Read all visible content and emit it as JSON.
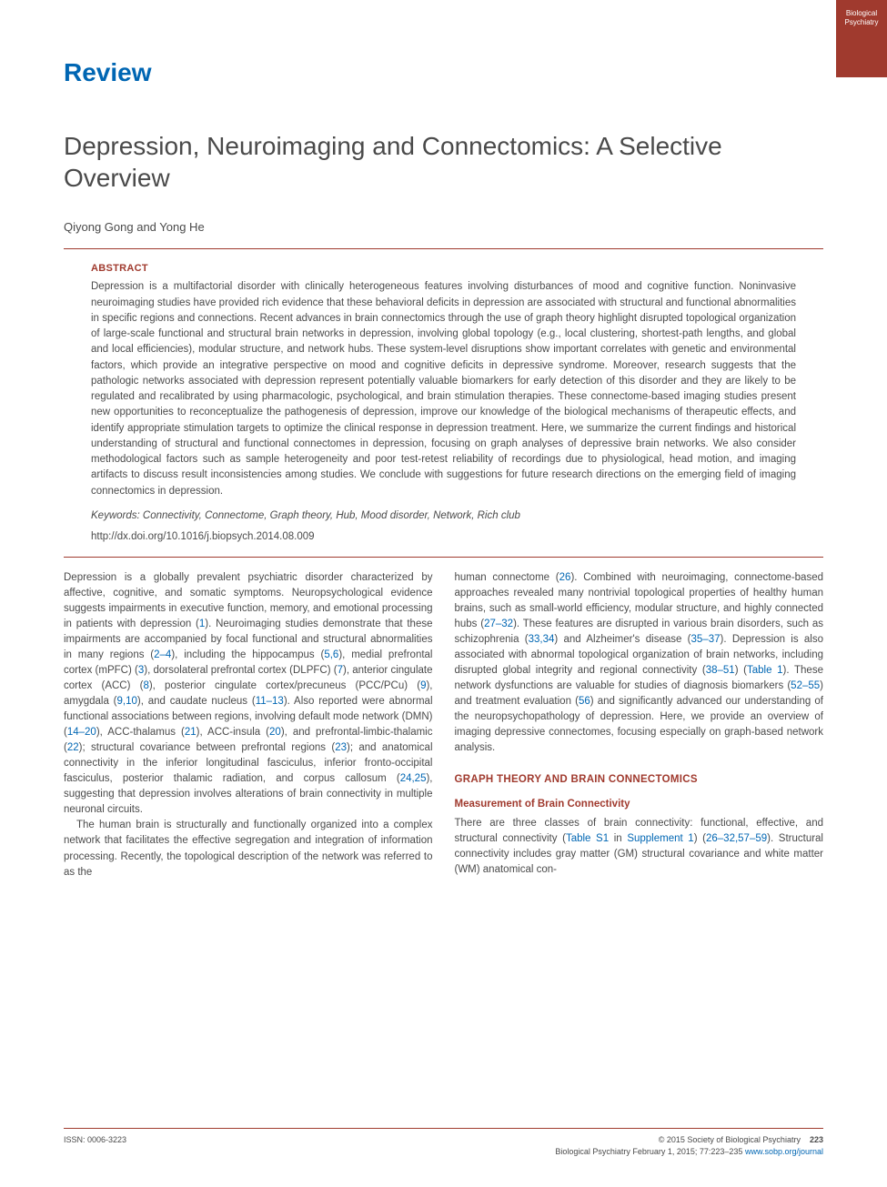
{
  "corner_badge": {
    "line1": "Biological",
    "line2": "Psychiatry"
  },
  "review_label": "Review",
  "title": "Depression, Neuroimaging and Connectomics: A Selective Overview",
  "authors": "Qiyong Gong and Yong He",
  "abstract": {
    "label": "ABSTRACT",
    "text": "Depression is a multifactorial disorder with clinically heterogeneous features involving disturbances of mood and cognitive function. Noninvasive neuroimaging studies have provided rich evidence that these behavioral deficits in depression are associated with structural and functional abnormalities in specific regions and connections. Recent advances in brain connectomics through the use of graph theory highlight disrupted topological organization of large-scale functional and structural brain networks in depression, involving global topology (e.g., local clustering, shortest-path lengths, and global and local efficiencies), modular structure, and network hubs. These system-level disruptions show important correlates with genetic and environmental factors, which provide an integrative perspective on mood and cognitive deficits in depressive syndrome. Moreover, research suggests that the pathologic networks associated with depression represent potentially valuable biomarkers for early detection of this disorder and they are likely to be regulated and recalibrated by using pharmacologic, psychological, and brain stimulation therapies. These connectome-based imaging studies present new opportunities to reconceptualize the pathogenesis of depression, improve our knowledge of the biological mechanisms of therapeutic effects, and identify appropriate stimulation targets to optimize the clinical response in depression treatment. Here, we summarize the current findings and historical understanding of structural and functional connectomes in depression, focusing on graph analyses of depressive brain networks. We also consider methodological factors such as sample heterogeneity and poor test-retest reliability of recordings due to physiological, head motion, and imaging artifacts to discuss result inconsistencies among studies. We conclude with suggestions for future research directions on the emerging field of imaging connectomics in depression.",
    "keywords_label": "Keywords:",
    "keywords": "Connectivity, Connectome, Graph theory, Hub, Mood disorder, Network, Rich club",
    "doi": "http://dx.doi.org/10.1016/j.biopsych.2014.08.009"
  },
  "col_left": {
    "p1_a": "Depression is a globally prevalent psychiatric disorder characterized by affective, cognitive, and somatic symptoms. Neuropsychological evidence suggests impairments in executive function, memory, and emotional processing in patients with depression (",
    "r1": "1",
    "p1_b": "). Neuroimaging studies demonstrate that these impairments are accompanied by focal functional and structural abnormalities in many regions (",
    "r2": "2–4",
    "p1_c": "), including the hippocampus (",
    "r3": "5,6",
    "p1_d": "), medial prefrontal cortex (mPFC) (",
    "r4": "3",
    "p1_e": "), dorsolateral prefrontal cortex (DLPFC) (",
    "r5": "7",
    "p1_f": "), anterior cingulate cortex (ACC) (",
    "r6": "8",
    "p1_g": "), posterior cingulate cortex/precuneus (PCC/PCu) (",
    "r7": "9",
    "p1_h": "), amygdala (",
    "r8": "9,10",
    "p1_i": "), and caudate nucleus (",
    "r9": "11–13",
    "p1_j": "). Also reported were abnormal functional associations between regions, involving default mode network (DMN) (",
    "r10": "14–20",
    "p1_k": "), ACC-thalamus (",
    "r11": "21",
    "p1_l": "), ACC-insula (",
    "r12": "20",
    "p1_m": "), and prefrontal-limbic-thalamic (",
    "r13": "22",
    "p1_n": "); structural covariance between prefrontal regions (",
    "r14": "23",
    "p1_o": "); and anatomical connectivity in the inferior longitudinal fasciculus, inferior fronto-occipital fasciculus, posterior thalamic radiation, and corpus callosum (",
    "r15": "24,25",
    "p1_p": "), suggesting that depression involves alterations of brain connectivity in multiple neuronal circuits.",
    "p2": "The human brain is structurally and functionally organized into a complex network that facilitates the effective segregation and integration of information processing. Recently, the topological description of the network was referred to as the"
  },
  "col_right": {
    "p1_a": "human connectome (",
    "r1": "26",
    "p1_b": "). Combined with neuroimaging, connectome-based approaches revealed many nontrivial topological properties of healthy human brains, such as small-world efficiency, modular structure, and highly connected hubs (",
    "r2": "27–32",
    "p1_c": "). These features are disrupted in various brain disorders, such as schizophrenia (",
    "r3": "33,34",
    "p1_d": ") and Alzheimer's disease (",
    "r4": "35–37",
    "p1_e": "). Depression is also associated with abnormal topological organization of brain networks, including disrupted global integrity and regional connectivity (",
    "r5": "38–51",
    "p1_f": ") (",
    "r6": "Table 1",
    "p1_g": "). These network dysfunctions are valuable for studies of diagnosis biomarkers (",
    "r7": "52–55",
    "p1_h": ") and treatment evaluation (",
    "r8": "56",
    "p1_i": ") and significantly advanced our understanding of the neuropsychopathology of depression. Here, we provide an overview of imaging depressive connectomes, focusing especially on graph-based network analysis.",
    "sec_head": "GRAPH THEORY AND BRAIN CONNECTOMICS",
    "subsec_head": "Measurement of Brain Connectivity",
    "p2_a": "There are three classes of brain connectivity: functional, effective, and structural connectivity (",
    "r9": "Table S1",
    "p2_b": " in ",
    "r10": "Supplement 1",
    "p2_c": ") (",
    "r11": "26–32,57–59",
    "p2_d": "). Structural connectivity includes gray matter (GM) structural covariance and white matter (WM) anatomical con-"
  },
  "footer": {
    "issn": "ISSN: 0006-3223",
    "copyright": "© 2015 Society of Biological Psychiatry",
    "pagenum": "223",
    "citation_a": "Biological Psychiatry February 1, 2015; 77:223–235 ",
    "citation_link": "www.sobp.org/journal"
  },
  "colors": {
    "brand_red": "#a03a2e",
    "link_blue": "#0066b3",
    "text": "#4a4a4a"
  }
}
